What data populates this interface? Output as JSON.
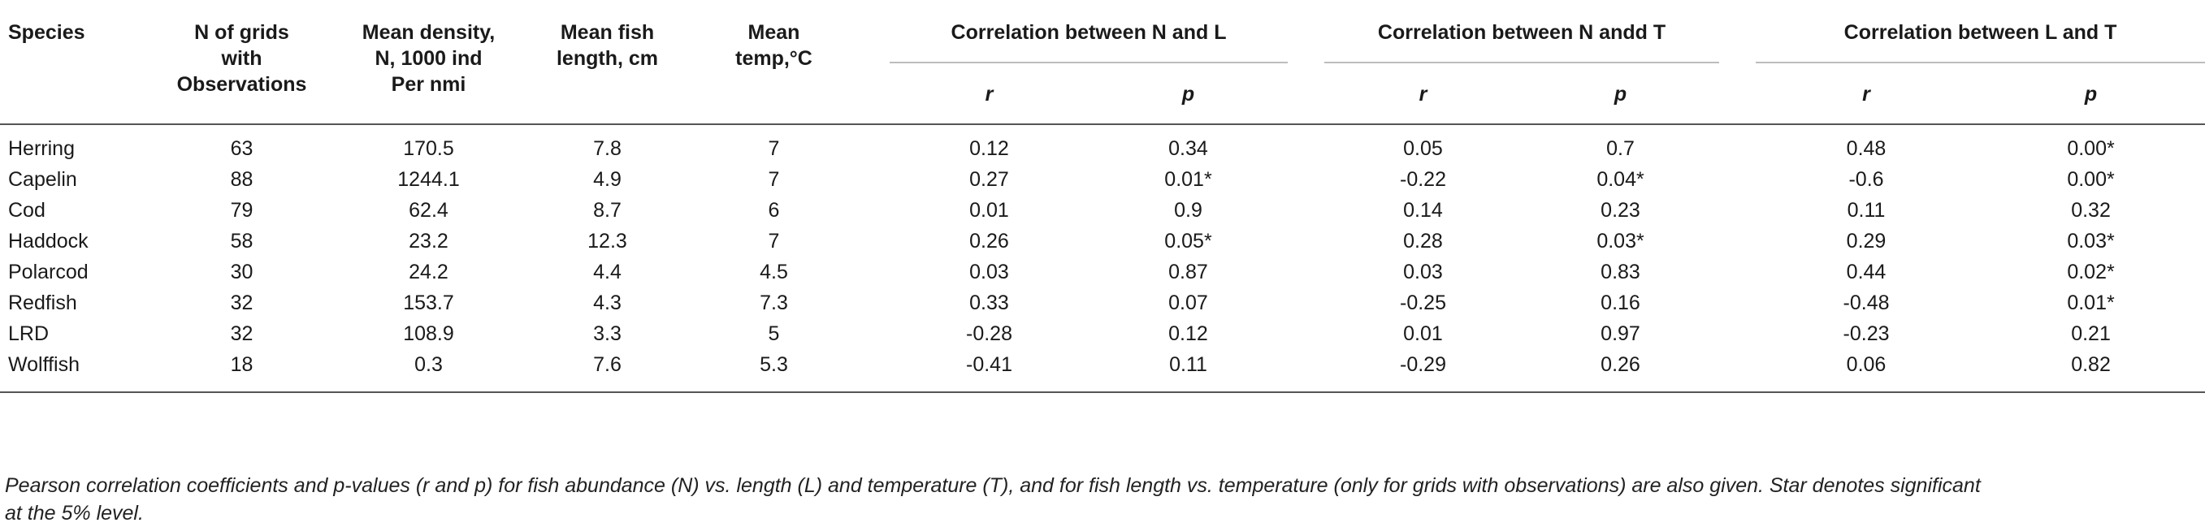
{
  "headers": {
    "species": "Species",
    "n_grids": [
      "N of grids",
      "with",
      "Observations"
    ],
    "mean_density": [
      "Mean density,",
      "N, 1000 ind",
      "Per nmi"
    ],
    "mean_length": [
      "Mean fish",
      "length, cm"
    ],
    "mean_temp": [
      "Mean",
      "temp,°C"
    ],
    "corr_nl": "Correlation between N and L",
    "corr_nt": "Correlation between N andd T",
    "corr_lt": "Correlation between L and T",
    "r": "r",
    "p": "p"
  },
  "rows": [
    {
      "species": "Herring",
      "n": "63",
      "density": "170.5",
      "length": "7.8",
      "temp": "7",
      "nl_r": "0.12",
      "nl_p": "0.34",
      "nt_r": "0.05",
      "nt_p": "0.7",
      "lt_r": "0.48",
      "lt_p": "0.00*"
    },
    {
      "species": "Capelin",
      "n": "88",
      "density": "1244.1",
      "length": "4.9",
      "temp": "7",
      "nl_r": "0.27",
      "nl_p": "0.01*",
      "nt_r": "-0.22",
      "nt_p": "0.04*",
      "lt_r": "-0.6",
      "lt_p": "0.00*"
    },
    {
      "species": "Cod",
      "n": "79",
      "density": "62.4",
      "length": "8.7",
      "temp": "6",
      "nl_r": "0.01",
      "nl_p": "0.9",
      "nt_r": "0.14",
      "nt_p": "0.23",
      "lt_r": "0.11",
      "lt_p": "0.32"
    },
    {
      "species": "Haddock",
      "n": "58",
      "density": "23.2",
      "length": "12.3",
      "temp": "7",
      "nl_r": "0.26",
      "nl_p": "0.05*",
      "nt_r": "0.28",
      "nt_p": "0.03*",
      "lt_r": "0.29",
      "lt_p": "0.03*"
    },
    {
      "species": "Polarcod",
      "n": "30",
      "density": "24.2",
      "length": "4.4",
      "temp": "4.5",
      "nl_r": "0.03",
      "nl_p": "0.87",
      "nt_r": "0.03",
      "nt_p": "0.83",
      "lt_r": "0.44",
      "lt_p": "0.02*"
    },
    {
      "species": "Redfish",
      "n": "32",
      "density": "153.7",
      "length": "4.3",
      "temp": "7.3",
      "nl_r": "0.33",
      "nl_p": "0.07",
      "nt_r": "-0.25",
      "nt_p": "0.16",
      "lt_r": "-0.48",
      "lt_p": "0.01*"
    },
    {
      "species": "LRD",
      "n": "32",
      "density": "108.9",
      "length": "3.3",
      "temp": "5",
      "nl_r": "-0.28",
      "nl_p": "0.12",
      "nt_r": "0.01",
      "nt_p": "0.97",
      "lt_r": "-0.23",
      "lt_p": "0.21"
    },
    {
      "species": "Wolffish",
      "n": "18",
      "density": "0.3",
      "length": "7.6",
      "temp": "5.3",
      "nl_r": "-0.41",
      "nl_p": "0.11",
      "nt_r": "-0.29",
      "nt_p": "0.26",
      "lt_r": "0.06",
      "lt_p": "0.82"
    }
  ],
  "caption": {
    "line1": "Pearson correlation coefficients and p-values (r and p) for fish abundance (N) vs. length (L) and temperature (T), and for fish length vs. temperature (only for grids with observations) are also given. Star denotes significant",
    "line2": "at the 5% level."
  }
}
